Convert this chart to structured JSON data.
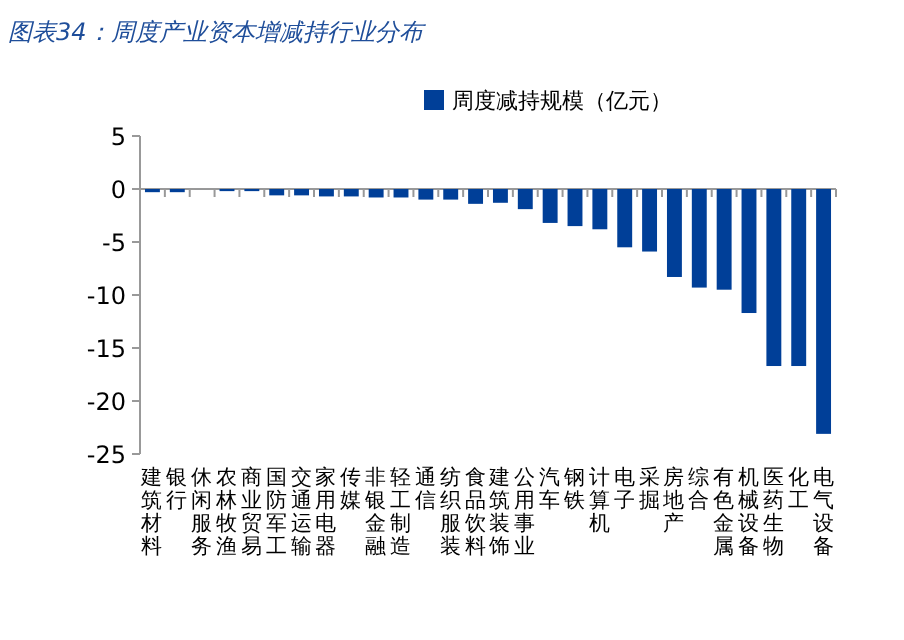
{
  "chart_data": {
    "type": "bar",
    "title": "图表34：周度产业资本增减持行业分布",
    "categories": [
      "建筑材料",
      "银行",
      "休闲服务",
      "农林牧渔",
      "商业贸易",
      "国防军工",
      "交通运输",
      "家用电器",
      "传媒",
      "非银金融",
      "轻工制造",
      "通信",
      "纺织服装",
      "食品饮料",
      "建筑装饰",
      "公用事业",
      "汽车",
      "钢铁",
      "计算机",
      "电子",
      "采掘",
      "房地产",
      "综合",
      "有色金属",
      "机械设备",
      "医药生物",
      "化工",
      "电气设备"
    ],
    "series": [
      {
        "name": "周度减持规模（亿元）",
        "color": "#003f98",
        "values": [
          -0.3,
          -0.3,
          0,
          -0.2,
          -0.2,
          -0.6,
          -0.6,
          -0.7,
          -0.7,
          -0.8,
          -0.8,
          -1.0,
          -1.0,
          -1.4,
          -1.3,
          -1.9,
          -3.2,
          -3.5,
          -3.8,
          -5.5,
          -5.9,
          -8.3,
          -9.3,
          -9.5,
          -11.7,
          -16.7,
          -16.7,
          -23.1
        ]
      }
    ],
    "ylim": [
      -25,
      5
    ],
    "yticks": [
      -25,
      -20,
      -15,
      -10,
      -5,
      0,
      5
    ],
    "legend": "top right"
  }
}
